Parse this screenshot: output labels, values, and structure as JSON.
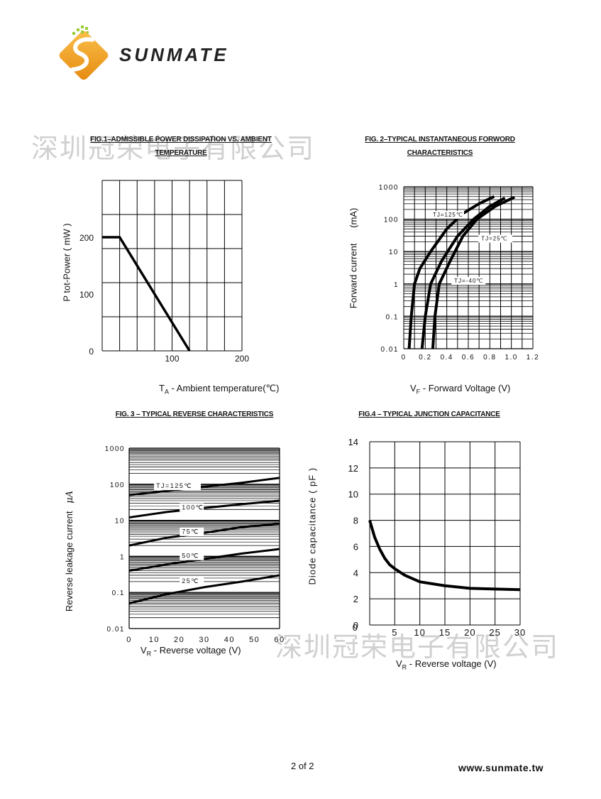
{
  "header": {
    "logo_text": "SUNMATE",
    "brand_color": "#f5a623"
  },
  "watermark": "深圳冠荣电子有限公司",
  "footer": {
    "page": "2 of 2",
    "website": "www.sunmate.tw"
  },
  "chart_data": [
    {
      "id": "fig1",
      "type": "line",
      "title_line1": "FIG.1–ADMISSIBLE POWER DISSIPATION VS. AMBIENT",
      "title_line2": "TEMPERATURE",
      "ylabel": "P tot-Power  ( mW )",
      "xlabel": "TA - Ambient temperature(℃)",
      "xlabel_main": "T",
      "xlabel_sub": "A",
      "xlabel_rest": " - Ambient  temperature(",
      "xlabel_unit": "℃",
      "xlabel_end": ")",
      "xlim": [
        0,
        200
      ],
      "ylim": [
        0,
        300
      ],
      "x_ticks": [
        "100",
        "200"
      ],
      "y_ticks": [
        "0",
        "100",
        "200"
      ],
      "series": [
        {
          "name": "Ptot",
          "x": [
            0,
            25,
            125
          ],
          "y": [
            200,
            200,
            0
          ]
        }
      ]
    },
    {
      "id": "fig2",
      "type": "line",
      "title_line1": "FIG. 2–TYPICAL INSTANTANEOUS FORWORD",
      "title_line2": "CHARACTERISTICS",
      "ylabel": "Forward current  (mA)",
      "ylabel_main": "Forward current",
      "ylabel_unit": "(mA)",
      "xlabel": "VF - Forward Voltage (V)",
      "xlabel_main": "V",
      "xlabel_sub": "F",
      "xlabel_rest": " - Forward Voltage (V)",
      "yscale": "log",
      "xlim": [
        0,
        1.2
      ],
      "ylim": [
        0.01,
        1000
      ],
      "x_ticks": [
        "0",
        "0.2",
        "0.4",
        "0.6",
        "0.8",
        "1.0",
        "1.2"
      ],
      "y_ticks": [
        "0.01",
        "0.1",
        "1",
        "10",
        "100",
        "1000"
      ],
      "series": [
        {
          "name": "TJ=125℃",
          "x": [
            0.05,
            0.07,
            0.1,
            0.15,
            0.25,
            0.4,
            0.55,
            0.7,
            0.84
          ],
          "y": [
            0.01,
            0.1,
            1,
            3,
            10,
            50,
            150,
            300,
            500
          ]
        },
        {
          "name": "TJ=25℃",
          "x": [
            0.17,
            0.2,
            0.25,
            0.35,
            0.5,
            0.65,
            0.8,
            0.94
          ],
          "y": [
            0.01,
            0.1,
            1,
            5,
            30,
            100,
            250,
            450
          ]
        },
        {
          "name": "TJ=-40℃",
          "x": [
            0.27,
            0.29,
            0.33,
            0.43,
            0.55,
            0.68,
            0.85,
            1.03
          ],
          "y": [
            0.01,
            0.1,
            1,
            5,
            30,
            100,
            250,
            480
          ]
        }
      ]
    },
    {
      "id": "fig3",
      "type": "line",
      "title": "FIG. 3 – TYPICAL REVERSE CHARACTERISTICS",
      "ylabel": "Reverse leakage current  μA",
      "ylabel_main": "Reverse leakage current",
      "ylabel_unit": "μA",
      "xlabel": "VR - Reverse voltage (V)",
      "xlabel_main": "V",
      "xlabel_sub": "R",
      "xlabel_rest": " - Reverse  voltage (V)",
      "yscale": "log",
      "xlim": [
        0,
        60
      ],
      "ylim": [
        0.01,
        1000
      ],
      "x_ticks": [
        "0",
        "10",
        "20",
        "30",
        "40",
        "50",
        "60"
      ],
      "y_ticks": [
        "0.01",
        "0.1",
        "1",
        "10",
        "100",
        "1000"
      ],
      "series": [
        {
          "name": "TJ=125℃",
          "x": [
            0,
            15,
            30,
            45,
            60
          ],
          "y": [
            50,
            65,
            85,
            110,
            150
          ]
        },
        {
          "name": "100℃",
          "x": [
            0,
            15,
            30,
            45,
            60
          ],
          "y": [
            12,
            17,
            22,
            28,
            35
          ]
        },
        {
          "name": "75℃",
          "x": [
            0,
            15,
            30,
            45,
            60
          ],
          "y": [
            2,
            3.3,
            4.5,
            6.5,
            8
          ]
        },
        {
          "name": "50℃",
          "x": [
            0,
            15,
            30,
            45,
            60
          ],
          "y": [
            0.4,
            0.6,
            0.85,
            1.2,
            1.6
          ]
        },
        {
          "name": "25℃",
          "x": [
            0,
            15,
            30,
            45,
            60
          ],
          "y": [
            0.05,
            0.09,
            0.14,
            0.2,
            0.3
          ]
        }
      ]
    },
    {
      "id": "fig4",
      "type": "line",
      "title": "FIG.4 – TYPICAL JUNCTION CAPACITANCE",
      "ylabel": "Diode  capacitance ( pF )",
      "xlabel": "VR - Reverse voltage (V)",
      "xlabel_main": "V",
      "xlabel_sub": "R",
      "xlabel_rest": " - Reverse  voltage (V)",
      "xlim": [
        0,
        30
      ],
      "ylim": [
        0,
        14
      ],
      "x_ticks": [
        "0",
        "5",
        "10",
        "15",
        "20",
        "25",
        "30"
      ],
      "y_ticks": [
        "0",
        "2",
        "4",
        "6",
        "8",
        "10",
        "12",
        "14"
      ],
      "series": [
        {
          "name": "Cj",
          "x": [
            0,
            1,
            2,
            3,
            4,
            5,
            7,
            10,
            15,
            20,
            25,
            30
          ],
          "y": [
            8,
            6.7,
            5.8,
            5.1,
            4.6,
            4.3,
            3.8,
            3.3,
            3.0,
            2.8,
            2.75,
            2.7
          ]
        }
      ]
    }
  ]
}
